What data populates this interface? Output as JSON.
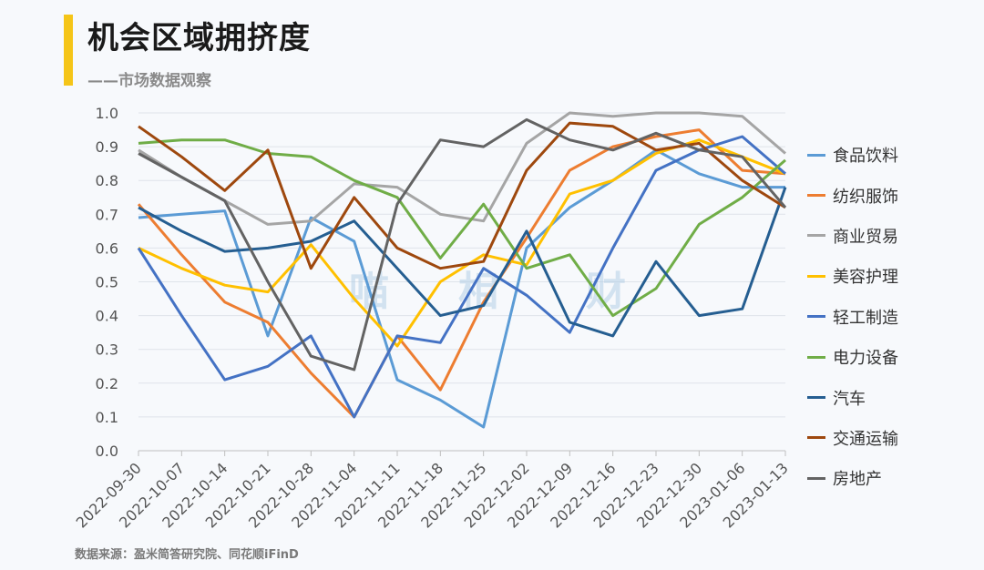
{
  "header": {
    "title": "机会区域拥挤度",
    "subtitle": "——市场数据观察",
    "accent_color": "#f5c518"
  },
  "footer": {
    "source": "数据来源：盈米简答研究院、同花顺iFinD"
  },
  "watermark": "喵 相 财",
  "chart_data": {
    "type": "line",
    "title": "机会区域拥挤度",
    "xlabel": "",
    "ylabel": "",
    "ylim": [
      0,
      1.0
    ],
    "yticks": [
      "0.0",
      "0.1",
      "0.2",
      "0.3",
      "0.4",
      "0.5",
      "0.6",
      "0.7",
      "0.8",
      "0.9",
      "1.0"
    ],
    "grid": true,
    "legend_position": "right",
    "categories": [
      "2022-09-30",
      "2022-10-07",
      "2022-10-14",
      "2022-10-21",
      "2022-10-28",
      "2022-11-04",
      "2022-11-11",
      "2022-11-18",
      "2022-11-25",
      "2022-12-02",
      "2022-12-09",
      "2022-12-16",
      "2022-12-23",
      "2022-12-30",
      "2023-01-06",
      "2023-01-13"
    ],
    "series": [
      {
        "name": "食品饮料",
        "color": "#5b9bd5",
        "values": [
          0.69,
          0.7,
          0.71,
          0.34,
          0.69,
          0.62,
          0.21,
          0.15,
          0.07,
          0.6,
          0.72,
          0.8,
          0.89,
          0.82,
          0.78,
          0.78
        ]
      },
      {
        "name": "纺织服饰",
        "color": "#ed7d31",
        "values": [
          0.73,
          0.58,
          0.44,
          0.38,
          0.23,
          0.1,
          0.34,
          0.18,
          0.44,
          0.63,
          0.83,
          0.9,
          0.93,
          0.95,
          0.83,
          0.82
        ]
      },
      {
        "name": "商业贸易",
        "color": "#a5a5a5",
        "values": [
          0.89,
          0.81,
          0.74,
          0.67,
          0.68,
          0.79,
          0.78,
          0.7,
          0.68,
          0.91,
          1.0,
          0.99,
          1.0,
          1.0,
          0.99,
          0.88
        ]
      },
      {
        "name": "美容护理",
        "color": "#ffc000",
        "values": [
          0.6,
          0.54,
          0.49,
          0.47,
          0.61,
          0.45,
          0.31,
          0.5,
          0.58,
          0.55,
          0.76,
          0.8,
          0.88,
          0.92,
          0.87,
          0.82
        ]
      },
      {
        "name": "轻工制造",
        "color": "#4472c4",
        "values": [
          0.6,
          0.4,
          0.21,
          0.25,
          0.34,
          0.1,
          0.34,
          0.32,
          0.54,
          0.46,
          0.35,
          0.6,
          0.83,
          0.89,
          0.93,
          0.82
        ]
      },
      {
        "name": "电力设备",
        "color": "#70ad47",
        "values": [
          0.91,
          0.92,
          0.92,
          0.88,
          0.87,
          0.8,
          0.75,
          0.57,
          0.73,
          0.54,
          0.58,
          0.4,
          0.48,
          0.67,
          0.75,
          0.86
        ]
      },
      {
        "name": "汽车",
        "color": "#255e91",
        "values": [
          0.72,
          0.65,
          0.59,
          0.6,
          0.62,
          0.68,
          0.54,
          0.4,
          0.43,
          0.65,
          0.38,
          0.34,
          0.56,
          0.4,
          0.42,
          0.78
        ]
      },
      {
        "name": "交通运输",
        "color": "#9e480e",
        "values": [
          0.96,
          0.87,
          0.77,
          0.89,
          0.54,
          0.75,
          0.6,
          0.54,
          0.56,
          0.83,
          0.97,
          0.96,
          0.89,
          0.91,
          0.8,
          0.72
        ]
      },
      {
        "name": "房地产",
        "color": "#636363",
        "values": [
          0.88,
          0.81,
          0.74,
          0.5,
          0.28,
          0.24,
          0.73,
          0.92,
          0.9,
          0.98,
          0.92,
          0.89,
          0.94,
          0.89,
          0.87,
          0.72
        ]
      }
    ]
  }
}
